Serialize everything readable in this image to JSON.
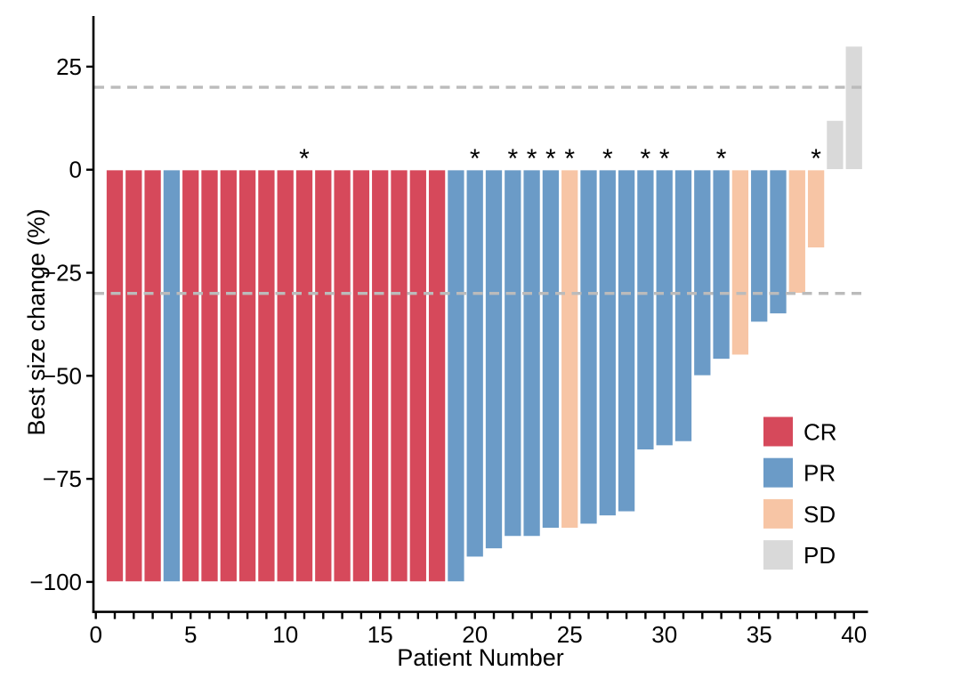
{
  "chart_data": {
    "type": "bar",
    "variant": "waterfall",
    "title": "",
    "xlabel": "Patient Number",
    "ylabel": "Best size change (%)",
    "xlim": [
      0,
      40.75
    ],
    "ylim": [
      -107,
      37.5
    ],
    "x_tick_step": 1,
    "x_tick_labels": [
      0,
      5,
      10,
      15,
      20,
      25,
      30,
      35,
      40
    ],
    "y_ticks": [
      25,
      0,
      -25,
      -50,
      -75,
      -100
    ],
    "y_tick_labels": [
      "25",
      "0",
      "−25",
      "−50",
      "−75",
      "−100"
    ],
    "grid": false,
    "reference_lines": [
      {
        "value": 20,
        "style": "dashed",
        "color": "#BBBBBB"
      },
      {
        "value": -30,
        "style": "dashed",
        "color": "#BBBBBB"
      }
    ],
    "annotation_symbol": "*",
    "annotated_patients": [
      11,
      20,
      22,
      23,
      24,
      25,
      27,
      29,
      30,
      33,
      38
    ],
    "legend": {
      "position": "inside-right",
      "entries": [
        {
          "label": "CR",
          "color": "#D6495B"
        },
        {
          "label": "PR",
          "color": "#6B9BC7"
        },
        {
          "label": "SD",
          "color": "#F7C5A5"
        },
        {
          "label": "PD",
          "color": "#D9D9D9"
        }
      ]
    },
    "patients": [
      {
        "patient": 1,
        "value": -100,
        "response": "CR",
        "annotated": false
      },
      {
        "patient": 2,
        "value": -100,
        "response": "CR",
        "annotated": false
      },
      {
        "patient": 3,
        "value": -100,
        "response": "CR",
        "annotated": false
      },
      {
        "patient": 4,
        "value": -100,
        "response": "PR",
        "annotated": false
      },
      {
        "patient": 5,
        "value": -100,
        "response": "CR",
        "annotated": false
      },
      {
        "patient": 6,
        "value": -100,
        "response": "CR",
        "annotated": false
      },
      {
        "patient": 7,
        "value": -100,
        "response": "CR",
        "annotated": false
      },
      {
        "patient": 8,
        "value": -100,
        "response": "CR",
        "annotated": false
      },
      {
        "patient": 9,
        "value": -100,
        "response": "CR",
        "annotated": false
      },
      {
        "patient": 10,
        "value": -100,
        "response": "CR",
        "annotated": false
      },
      {
        "patient": 11,
        "value": -100,
        "response": "CR",
        "annotated": true
      },
      {
        "patient": 12,
        "value": -100,
        "response": "CR",
        "annotated": false
      },
      {
        "patient": 13,
        "value": -100,
        "response": "CR",
        "annotated": false
      },
      {
        "patient": 14,
        "value": -100,
        "response": "CR",
        "annotated": false
      },
      {
        "patient": 15,
        "value": -100,
        "response": "CR",
        "annotated": false
      },
      {
        "patient": 16,
        "value": -100,
        "response": "CR",
        "annotated": false
      },
      {
        "patient": 17,
        "value": -100,
        "response": "CR",
        "annotated": false
      },
      {
        "patient": 18,
        "value": -100,
        "response": "CR",
        "annotated": false
      },
      {
        "patient": 19,
        "value": -100,
        "response": "PR",
        "annotated": false
      },
      {
        "patient": 20,
        "value": -94,
        "response": "PR",
        "annotated": true
      },
      {
        "patient": 21,
        "value": -92,
        "response": "PR",
        "annotated": false
      },
      {
        "patient": 22,
        "value": -89,
        "response": "PR",
        "annotated": true
      },
      {
        "patient": 23,
        "value": -89,
        "response": "PR",
        "annotated": true
      },
      {
        "patient": 24,
        "value": -87,
        "response": "PR",
        "annotated": true
      },
      {
        "patient": 25,
        "value": -87,
        "response": "SD",
        "annotated": true
      },
      {
        "patient": 26,
        "value": -86,
        "response": "PR",
        "annotated": false
      },
      {
        "patient": 27,
        "value": -84,
        "response": "PR",
        "annotated": true
      },
      {
        "patient": 28,
        "value": -83,
        "response": "PR",
        "annotated": false
      },
      {
        "patient": 29,
        "value": -68,
        "response": "PR",
        "annotated": true
      },
      {
        "patient": 30,
        "value": -67,
        "response": "PR",
        "annotated": true
      },
      {
        "patient": 31,
        "value": -66,
        "response": "PR",
        "annotated": false
      },
      {
        "patient": 32,
        "value": -50,
        "response": "PR",
        "annotated": false
      },
      {
        "patient": 33,
        "value": -46,
        "response": "PR",
        "annotated": true
      },
      {
        "patient": 34,
        "value": -45,
        "response": "SD",
        "annotated": false
      },
      {
        "patient": 35,
        "value": -37,
        "response": "PR",
        "annotated": false
      },
      {
        "patient": 36,
        "value": -35,
        "response": "PR",
        "annotated": false
      },
      {
        "patient": 37,
        "value": -30,
        "response": "SD",
        "annotated": false
      },
      {
        "patient": 38,
        "value": -19,
        "response": "SD",
        "annotated": true
      },
      {
        "patient": 39,
        "value": 12,
        "response": "PD",
        "annotated": false
      },
      {
        "patient": 40,
        "value": 30,
        "response": "PD",
        "annotated": false
      }
    ]
  },
  "colors": {
    "background": "#FFFFFF",
    "axis": "#000000",
    "reference_line": "#BBBBBB",
    "bar_border": "#FFFFFF"
  }
}
